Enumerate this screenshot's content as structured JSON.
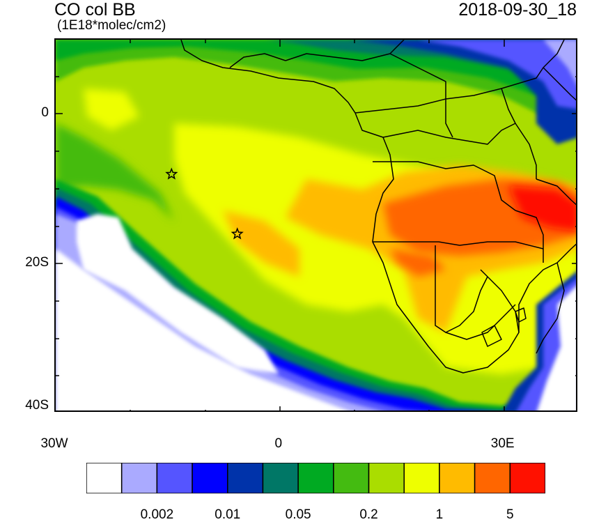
{
  "title": {
    "main": "CO col BB",
    "units": "(1E18*molec/cm2)",
    "date": "2018-09-30_18"
  },
  "axes": {
    "y_ticks": [
      {
        "label": "0",
        "lat": 0
      },
      {
        "label": "20S",
        "lat": -20
      },
      {
        "label": "40S",
        "lat": -40
      }
    ],
    "x_ticks": [
      {
        "label": "30W",
        "lon": -30
      },
      {
        "label": "0",
        "lon": 0
      },
      {
        "label": "30E",
        "lon": 30
      }
    ],
    "lon_range": [
      -30,
      40
    ],
    "lat_range": [
      -40,
      10
    ]
  },
  "colorbar": {
    "colors": [
      "#ffffff",
      "#aaaaff",
      "#5555ff",
      "#0000ff",
      "#0033aa",
      "#007766",
      "#00aa22",
      "#44bb11",
      "#aadd00",
      "#eeff00",
      "#ffbb00",
      "#ff6600",
      "#ff1100"
    ],
    "labels": [
      {
        "text": "0.002",
        "boundary": 2
      },
      {
        "text": "0.01",
        "boundary": 4
      },
      {
        "text": "0.05",
        "boundary": 6
      },
      {
        "text": "0.2",
        "boundary": 8
      },
      {
        "text": "1",
        "boundary": 10
      },
      {
        "text": "5",
        "boundary": 12
      }
    ]
  },
  "markers": [
    {
      "name": "star-marker",
      "lon": -14.5,
      "lat": -8
    },
    {
      "name": "star-marker",
      "lon": -5.7,
      "lat": -16
    }
  ],
  "map_style": {
    "ocean_clean": "#ffffff",
    "country_line": "#000000"
  }
}
